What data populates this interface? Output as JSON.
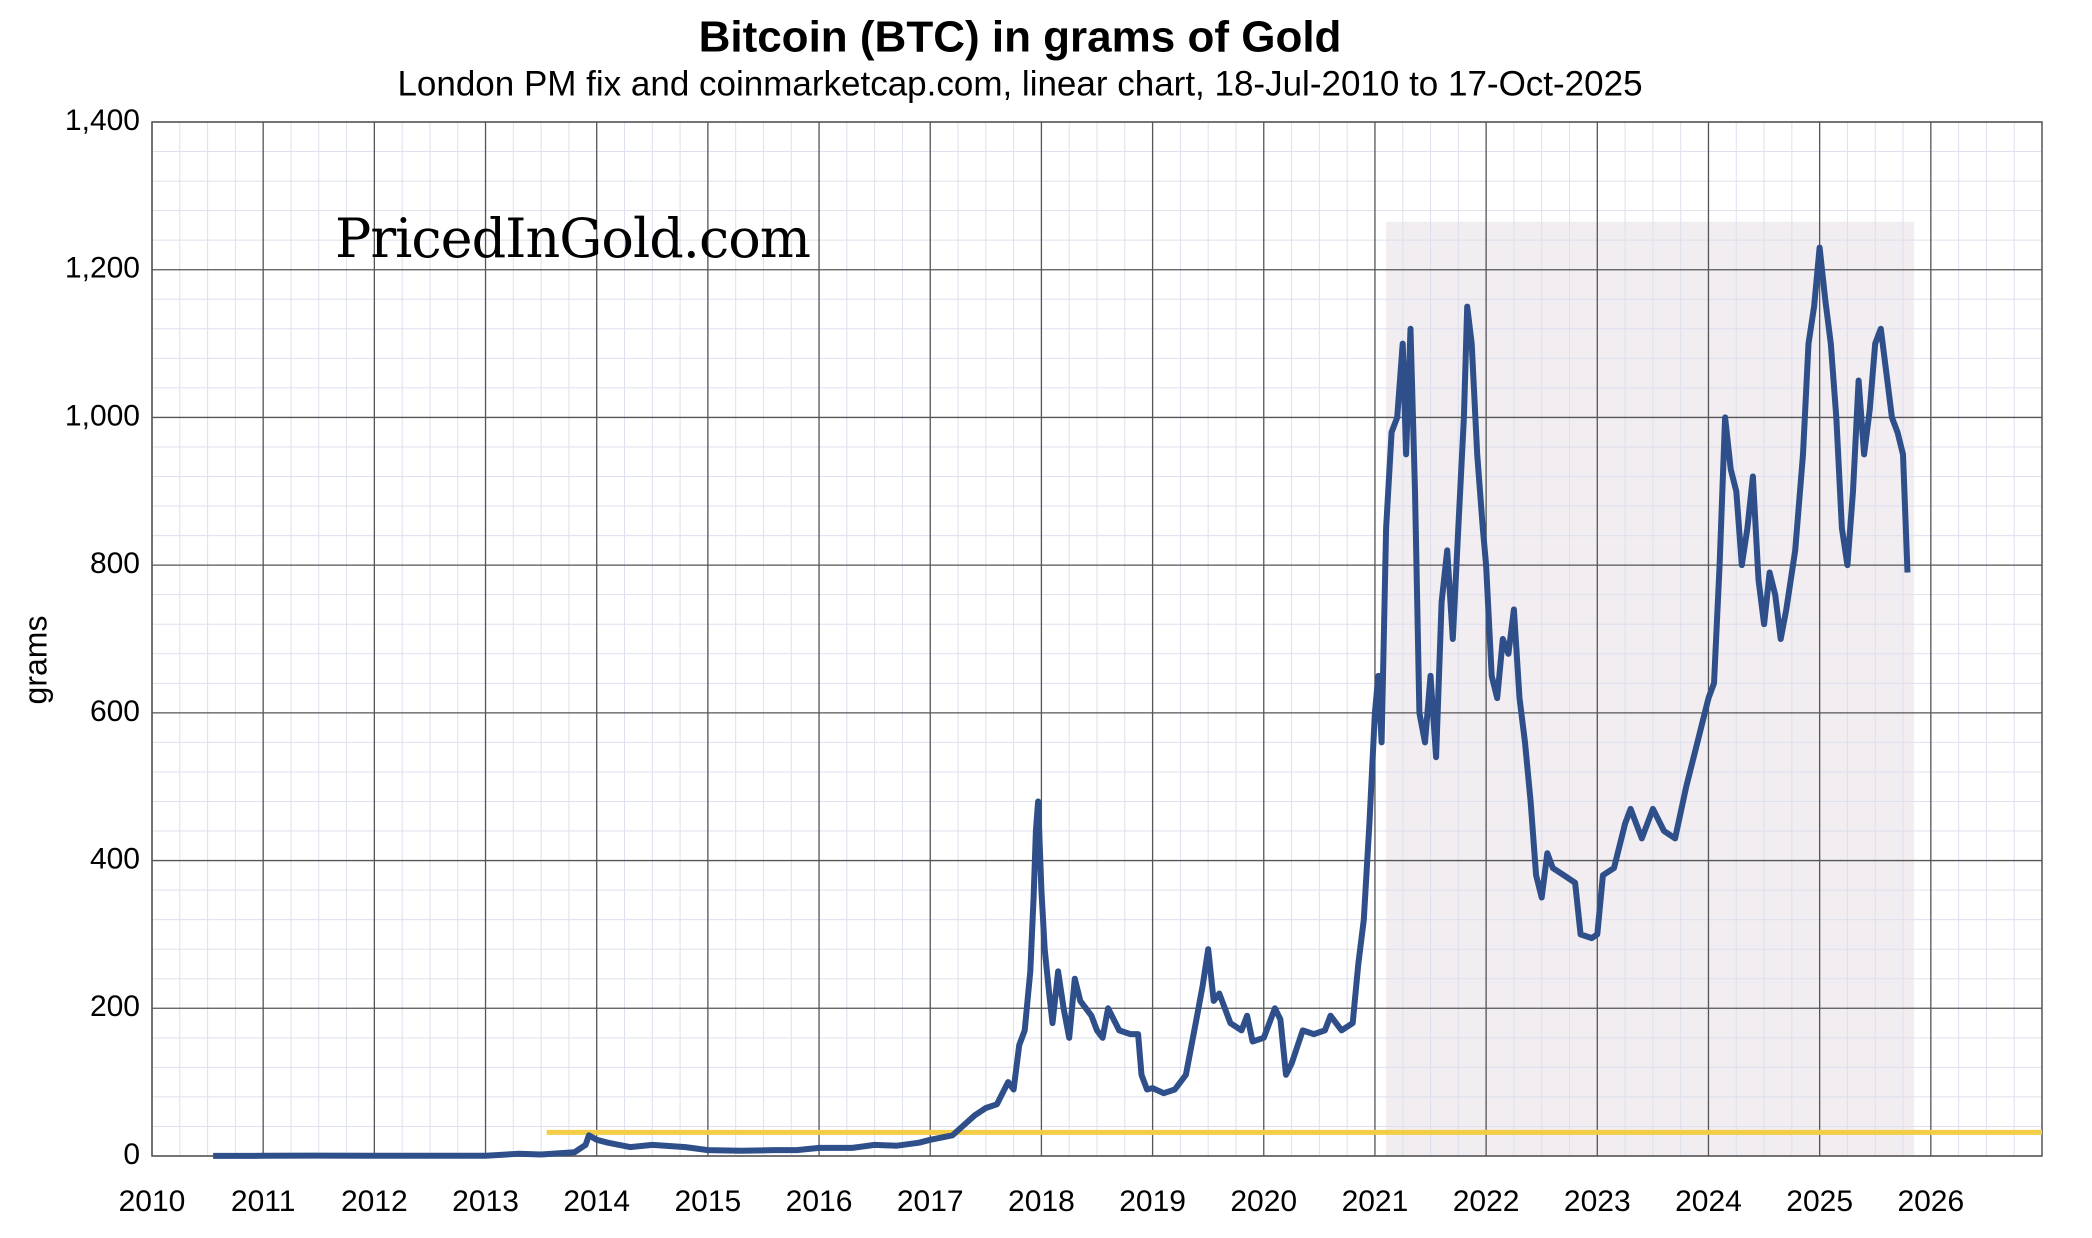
{
  "chart_data": {
    "type": "line",
    "title": "Bitcoin (BTC) in grams of Gold",
    "subtitle": "London PM fix and coinmarketcap.com, linear chart, 18-Jul-2010 to 17-Oct-2025",
    "y_label": "grams",
    "annotation": "PricedInGold.com",
    "xlim": [
      2010,
      2027
    ],
    "xticks": [
      2010,
      2011,
      2012,
      2013,
      2014,
      2015,
      2016,
      2017,
      2018,
      2019,
      2020,
      2021,
      2022,
      2023,
      2024,
      2025,
      2026
    ],
    "ylim": [
      0,
      1400
    ],
    "yticks": [
      0,
      200,
      400,
      600,
      800,
      {
        "value": 1000,
        "label": "1,000"
      },
      {
        "value": 1200,
        "label": "1,200"
      },
      {
        "value": 1400,
        "label": "1,400"
      }
    ],
    "grid": true,
    "reference_line": {
      "y": 32,
      "x": [
        2013.55,
        2027
      ],
      "color": "#f2cd45"
    },
    "shaded_region": {
      "x": [
        2021.1,
        2025.85
      ],
      "y": [
        0,
        1265
      ],
      "color": "#f1edf0"
    },
    "series": [
      {
        "color": "#2f4f8a",
        "x": [
          2010.55,
          2011,
          2011.45,
          2012,
          2012.5,
          2013,
          2013.3,
          2013.5,
          2013.8,
          2013.9,
          2013.93,
          2014,
          2014.1,
          2014.3,
          2014.5,
          2014.8,
          2015,
          2015.3,
          2015.6,
          2015.8,
          2016,
          2016.3,
          2016.5,
          2016.7,
          2016.9,
          2017,
          2017.2,
          2017.4,
          2017.5,
          2017.6,
          2017.7,
          2017.75,
          2017.8,
          2017.85,
          2017.9,
          2017.93,
          2017.95,
          2017.97,
          2018,
          2018.03,
          2018.07,
          2018.1,
          2018.15,
          2018.2,
          2018.25,
          2018.3,
          2018.35,
          2018.45,
          2018.5,
          2018.55,
          2018.6,
          2018.7,
          2018.8,
          2018.87,
          2018.9,
          2018.95,
          2019,
          2019.1,
          2019.2,
          2019.3,
          2019.4,
          2019.45,
          2019.5,
          2019.55,
          2019.6,
          2019.7,
          2019.8,
          2019.85,
          2019.9,
          2020,
          2020.1,
          2020.15,
          2020.2,
          2020.25,
          2020.35,
          2020.45,
          2020.55,
          2020.6,
          2020.7,
          2020.8,
          2020.85,
          2020.9,
          2020.95,
          2021,
          2021.03,
          2021.06,
          2021.1,
          2021.15,
          2021.2,
          2021.25,
          2021.28,
          2021.32,
          2021.36,
          2021.4,
          2021.45,
          2021.5,
          2021.55,
          2021.6,
          2021.65,
          2021.7,
          2021.75,
          2021.8,
          2021.83,
          2021.87,
          2021.92,
          2021.97,
          2022,
          2022.05,
          2022.1,
          2022.15,
          2022.2,
          2022.25,
          2022.3,
          2022.35,
          2022.4,
          2022.45,
          2022.5,
          2022.55,
          2022.6,
          2022.7,
          2022.8,
          2022.85,
          2022.95,
          2023,
          2023.05,
          2023.15,
          2023.25,
          2023.3,
          2023.4,
          2023.5,
          2023.6,
          2023.7,
          2023.8,
          2023.9,
          2024,
          2024.05,
          2024.1,
          2024.15,
          2024.2,
          2024.25,
          2024.3,
          2024.35,
          2024.4,
          2024.45,
          2024.5,
          2024.55,
          2024.6,
          2024.65,
          2024.7,
          2024.78,
          2024.85,
          2024.9,
          2024.95,
          2025,
          2025.05,
          2025.1,
          2025.15,
          2025.2,
          2025.25,
          2025.3,
          2025.35,
          2025.4,
          2025.45,
          2025.5,
          2025.55,
          2025.6,
          2025.65,
          2025.7,
          2025.75,
          2025.79
        ],
        "values": [
          0.1,
          0.3,
          0.5,
          0.3,
          0.4,
          0.4,
          3,
          2,
          5,
          15,
          28,
          22,
          18,
          12,
          15,
          12,
          8,
          7,
          8,
          8,
          11,
          11,
          15,
          14,
          18,
          22,
          28,
          55,
          65,
          70,
          100,
          90,
          150,
          170,
          250,
          350,
          440,
          480,
          360,
          280,
          220,
          180,
          250,
          200,
          160,
          240,
          210,
          190,
          170,
          160,
          200,
          170,
          165,
          165,
          110,
          90,
          92,
          85,
          90,
          110,
          190,
          230,
          280,
          210,
          220,
          180,
          170,
          190,
          155,
          160,
          200,
          185,
          110,
          125,
          170,
          165,
          170,
          190,
          170,
          180,
          260,
          320,
          450,
          600,
          650,
          560,
          850,
          980,
          1000,
          1100,
          950,
          1120,
          900,
          600,
          560,
          650,
          540,
          750,
          820,
          700,
          850,
          1000,
          1150,
          1100,
          950,
          850,
          800,
          650,
          620,
          700,
          680,
          740,
          620,
          560,
          480,
          380,
          350,
          410,
          390,
          380,
          370,
          300,
          295,
          300,
          380,
          390,
          450,
          470,
          430,
          470,
          440,
          430,
          500,
          560,
          620,
          640,
          800,
          1000,
          930,
          900,
          800,
          850,
          920,
          780,
          720,
          790,
          760,
          700,
          740,
          820,
          950,
          1100,
          1150,
          1230,
          1160,
          1100,
          1000,
          850,
          800,
          900,
          1050,
          950,
          1010,
          1100,
          1120,
          1060,
          1000,
          980,
          950,
          790
        ]
      }
    ]
  }
}
